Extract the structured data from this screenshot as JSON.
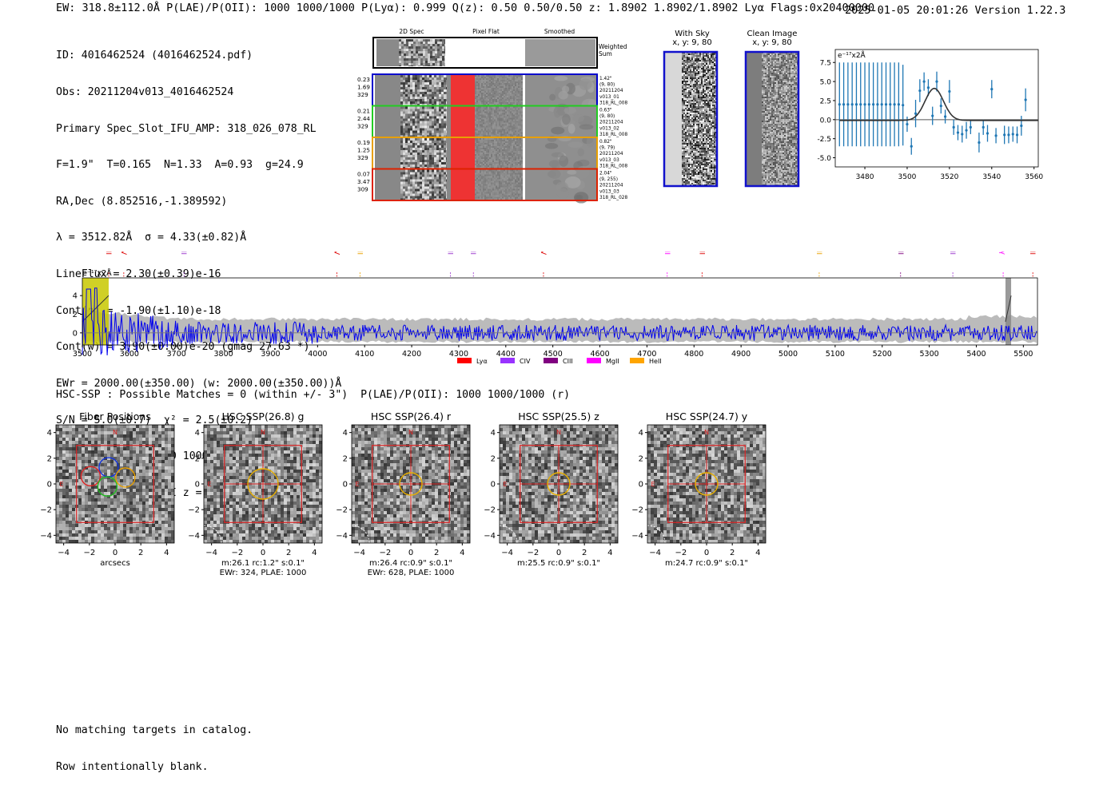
{
  "header": {
    "left": "EW: 318.8±112.0Å  P(LAE)/P(OII): 1000 1000/1000  P(Lyα): 0.999  Q(z): 0.50 0.50/0.50  z: 1.8902 1.8902/1.8902 Lyα  Flags:0x20400000",
    "right": "2025-01-05 20:01:26  Version 1.22.3"
  },
  "info": {
    "lines": [
      "ID: 4016462524 (4016462524.pdf)",
      "Obs: 20211204v013_4016462524",
      "Primary Spec_Slot_IFU_AMP: 318_026_078_RL",
      "F=1.9\"  T=0.165  N=1.33  A=0.93  g=24.9",
      "RA,Dec (8.852516,-1.389592)",
      "λ = 3512.82Å  σ = 4.33(±0.82)Å",
      "LineFlux = 2.30(±0.39)e-16",
      "Cont(n) = -1.90(±1.10)e-18",
      "Cont(w) = 3.90(±0.00)e-20 (gmag 27.63 *)",
      "EWr = 2000.00(±350.00) (w: 2000.00(±350.00))Å",
      "S/N = 5.0(±0.7)  χ² = 2.5(±0.2)",
      "P(LAE)/P(OII): 1000 1000/1000",
      "LyA z = 1.8896  OII z = N/A"
    ]
  },
  "fiber_panel": {
    "col_labels": [
      "2D Spec",
      "Pixel Flat",
      "Smoothed"
    ],
    "weighted_label": "Weighted Sum",
    "fibers": [
      {
        "left": [
          "0.23",
          "1.69",
          "329"
        ],
        "right": [
          "1.42\"",
          "(9, 80)",
          "20211204",
          "v013_01",
          "318_RL_008"
        ],
        "color": "#0000cc"
      },
      {
        "left": [
          "0.21",
          "2.44",
          "329"
        ],
        "right": [
          "0.63\"",
          "(9, 80)",
          "20211204",
          "v013_02",
          "318_RL_008"
        ],
        "color": "#22cc22"
      },
      {
        "left": [
          "0.19",
          "1.25",
          "329"
        ],
        "right": [
          "0.82\"",
          "(9, 79)",
          "20211204",
          "v013_03",
          "318_RL_008"
        ],
        "color": "#e8a000"
      },
      {
        "left": [
          "0.07",
          "3.47",
          "309"
        ],
        "right": [
          "2.04\"",
          "(9, 255)",
          "20211204",
          "v013_03",
          "318_RL_028"
        ],
        "color": "#dd2200"
      }
    ]
  },
  "sky_panels": [
    {
      "title": "With Sky",
      "subtitle": "x, y: 9, 80"
    },
    {
      "title": "Clean Image",
      "subtitle": "x, y: 9, 80"
    }
  ],
  "colors": {
    "accent_blue": "#1f77b4",
    "spectrum": "#0000ee",
    "band": "#bbbbbb"
  },
  "chart_data": [
    {
      "type": "scatter",
      "title": "Line fit",
      "scale_label": "e⁻¹⁷x2Å",
      "xlim": [
        3466,
        3562
      ],
      "ylim": [
        -6.2,
        9.2
      ],
      "xticks": [
        3480,
        3500,
        3520,
        3540,
        3560
      ],
      "yticks": [
        7.5,
        5.0,
        2.5,
        0.0,
        -2.5,
        -5.0
      ],
      "points": {
        "x": [
          3468,
          3470,
          3472,
          3474,
          3476,
          3478,
          3480,
          3482,
          3484,
          3486,
          3488,
          3490,
          3492,
          3494,
          3496,
          3498,
          3500,
          3502,
          3504,
          3506,
          3508,
          3510,
          3512,
          3514,
          3516,
          3518,
          3520,
          3522,
          3524,
          3526,
          3528,
          3530,
          3534,
          3536,
          3538,
          3540,
          3542,
          3546,
          3548,
          3550,
          3552,
          3554,
          3556
        ],
        "y": [
          2.0,
          2.0,
          2.0,
          2.0,
          2.0,
          2.0,
          2.0,
          2.0,
          2.0,
          2.0,
          2.0,
          2.0,
          2.0,
          2.0,
          2.0,
          1.9,
          -0.6,
          -3.5,
          0.8,
          3.8,
          5.0,
          4.2,
          0.5,
          5.0,
          1.8,
          0.4,
          3.7,
          -1.0,
          -1.7,
          -1.9,
          -1.4,
          -1.0,
          -3.0,
          -1.0,
          -1.8,
          4.0,
          -2.1,
          -2.0,
          -2.0,
          -1.9,
          -2.0,
          -0.8,
          2.6
        ],
        "err": [
          5.5,
          5.5,
          5.5,
          5.5,
          5.5,
          5.5,
          5.5,
          5.5,
          5.5,
          5.5,
          5.5,
          5.5,
          5.5,
          5.5,
          5.5,
          5.3,
          1.0,
          1.1,
          1.8,
          1.5,
          1.2,
          1.1,
          1.2,
          1.3,
          1.0,
          0.9,
          1.5,
          1.0,
          1.0,
          1.1,
          1.1,
          0.9,
          1.3,
          1.0,
          1.1,
          1.2,
          1.0,
          1.2,
          1.1,
          1.0,
          1.1,
          1.3,
          1.5
        ]
      },
      "fit": {
        "center": 3512.82,
        "sigma": 4.33,
        "amplitude": 4.2,
        "baseline": -0.1
      }
    },
    {
      "type": "line",
      "title": "Full spectrum",
      "scale_label": "e⁻¹⁷x2Å",
      "xlim": [
        3500,
        5530
      ],
      "ylim": [
        -1.3,
        5.9
      ],
      "xticks": [
        3500,
        3600,
        3700,
        3800,
        3900,
        4000,
        4100,
        4200,
        4300,
        4400,
        4500,
        4600,
        4700,
        4800,
        4900,
        5000,
        5100,
        5200,
        5300,
        5400,
        5500
      ],
      "yticks": [
        4,
        2,
        0
      ],
      "seed": 7,
      "lines": [
        {
          "label": "NV",
          "wave": 3583,
          "color": "#dd0000"
        },
        {
          "label": "SiII",
          "wave": 3551,
          "color": "#dd0000"
        },
        {
          "label": "HeII",
          "wave": 3711,
          "color": "#9933cc"
        },
        {
          "label": "SiIV",
          "wave": 4036,
          "color": "#dd0000"
        },
        {
          "label": "CIII",
          "wave": 4085,
          "color": "#e8a000"
        },
        {
          "label": "CII",
          "wave": 4277,
          "color": "#9933cc"
        },
        {
          "label": "CIII",
          "wave": 4326,
          "color": "#9933cc"
        },
        {
          "label": "CIV",
          "wave": 4475,
          "color": "#dd0000"
        },
        {
          "label": "OII",
          "wave": 4738,
          "color": "#ff00ff"
        },
        {
          "label": "HeII",
          "wave": 4812,
          "color": "#dd0000"
        },
        {
          "label": "CII",
          "wave": 5061,
          "color": "#e8a000"
        },
        {
          "label": "MgII",
          "wave": 5234,
          "color": "#800080"
        },
        {
          "label": "CII",
          "wave": 5345,
          "color": "#9933cc"
        },
        {
          "label": "Hγ",
          "wave": 5452,
          "color": "#ff00ff"
        },
        {
          "label": "CIII",
          "wave": 5515,
          "color": "#dd0000"
        }
      ],
      "legend": [
        {
          "label": "Lyα",
          "color": "#ff0000"
        },
        {
          "label": "CIV",
          "color": "#9933ff"
        },
        {
          "label": "CIII",
          "color": "#800080"
        },
        {
          "label": "MgII",
          "color": "#ff00ff"
        },
        {
          "label": "HeII",
          "color": "#ffa500"
        }
      ],
      "highlight_ranges": [
        [
          3500,
          3556
        ],
        [
          5462,
          5474
        ]
      ]
    }
  ],
  "hsc": {
    "line": "HSC-SSP : Possible Matches = 0 (within +/- 3\")  P(LAE)/P(OII): 1000 1000/1000 (r)",
    "xlim": [
      -4.6,
      4.6
    ],
    "ticks": [
      4,
      2,
      0,
      -2,
      -4
    ],
    "xticks": [
      -4,
      -2,
      0,
      2,
      4
    ],
    "panels": [
      {
        "title": "Fiber Positions",
        "caption": [
          "arcsecs"
        ]
      },
      {
        "title": "HSC SSP(26.8) g",
        "caption": [
          "m:26.1 rc:1.2\"  s:0.1\"",
          "EWr: 324, PLAE: 1000"
        ]
      },
      {
        "title": "HSC SSP(26.4) r",
        "caption": [
          "m:26.4 rc:0.9\"  s:0.1\"",
          "EWr: 628, PLAE: 1000"
        ]
      },
      {
        "title": "HSC SSP(25.5) z",
        "caption": [
          "m:25.5 rc:0.9\"  s:0.1\""
        ]
      },
      {
        "title": "HSC SSP(24.7) y",
        "caption": [
          "m:24.7 rc:0.9\"  s:0.1\""
        ]
      }
    ],
    "compass": {
      "north": "N",
      "east": "E"
    }
  },
  "footer": {
    "lines": [
      "No matching targets in catalog.",
      "Row intentionally blank."
    ]
  }
}
